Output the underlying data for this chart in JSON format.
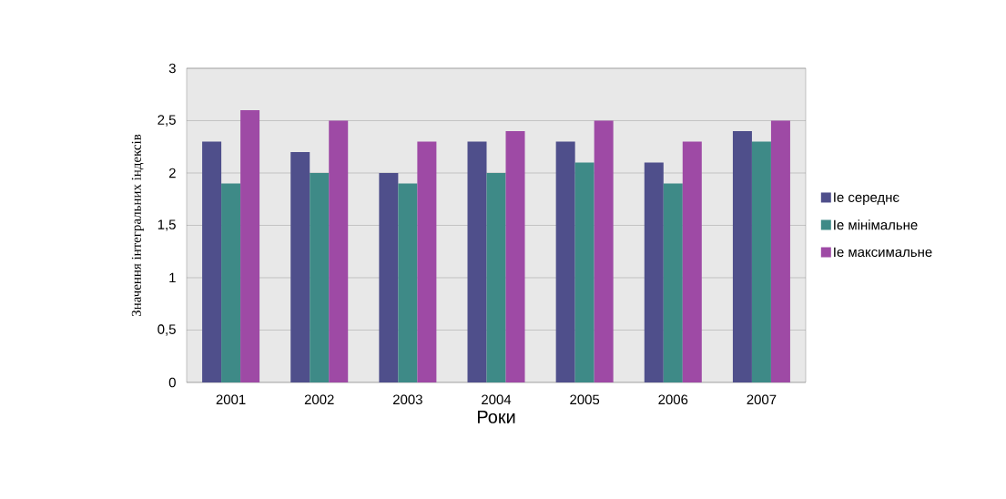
{
  "chart_data": {
    "type": "bar",
    "xlabel": "Роки",
    "ylabel": "Значення інтегральних індексів",
    "categories": [
      "2001",
      "2002",
      "2003",
      "2004",
      "2005",
      "2006",
      "2007"
    ],
    "series": [
      {
        "name": "Ie середнє",
        "color": "#4f4f8b",
        "values": [
          2.3,
          2.2,
          2.0,
          2.3,
          2.3,
          2.1,
          2.4
        ]
      },
      {
        "name": "Ie мінімальне",
        "color": "#3e8a87",
        "values": [
          1.9,
          2.0,
          1.9,
          2.0,
          2.1,
          1.9,
          2.3
        ]
      },
      {
        "name": "Ie максимальне",
        "color": "#9e4aa5",
        "values": [
          2.6,
          2.5,
          2.3,
          2.4,
          2.5,
          2.3,
          2.5
        ]
      }
    ],
    "ylim": [
      0,
      3
    ],
    "yticks": [
      0,
      {
        "value": 0.5,
        "label": "0,5"
      },
      1,
      {
        "value": 1.5,
        "label": "1,5"
      },
      2,
      {
        "value": 2.5,
        "label": "2,5"
      },
      3
    ],
    "grid": "y",
    "legend": "right"
  }
}
